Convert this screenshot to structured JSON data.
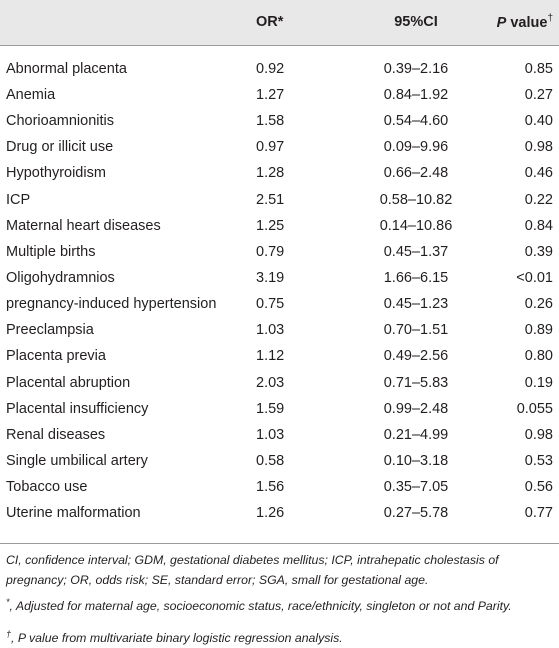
{
  "table": {
    "headers": {
      "col1": "",
      "col2": "OR*",
      "col3": "95%CI",
      "col4_italic": "P",
      "col4_rest": " value",
      "col4_mark": "†"
    },
    "rows": [
      {
        "name": "Abnormal placenta",
        "or": "0.92",
        "ci": "0.39–2.16",
        "p": "0.85"
      },
      {
        "name": "Anemia",
        "or": "1.27",
        "ci": "0.84–1.92",
        "p": "0.27"
      },
      {
        "name": "Chorioamnionitis",
        "or": "1.58",
        "ci": "0.54–4.60",
        "p": "0.40"
      },
      {
        "name": "Drug or illicit use",
        "or": "0.97",
        "ci": "0.09–9.96",
        "p": "0.98"
      },
      {
        "name": "Hypothyroidism",
        "or": "1.28",
        "ci": "0.66–2.48",
        "p": "0.46"
      },
      {
        "name": "ICP",
        "or": "2.51",
        "ci": "0.58–10.82",
        "p": "0.22"
      },
      {
        "name": "Maternal heart diseases",
        "or": "1.25",
        "ci": "0.14–10.86",
        "p": "0.84"
      },
      {
        "name": "Multiple births",
        "or": "0.79",
        "ci": "0.45–1.37",
        "p": "0.39"
      },
      {
        "name": "Oligohydramnios",
        "or": "3.19",
        "ci": "1.66–6.15",
        "p": "<0.01"
      },
      {
        "name": "pregnancy-induced hypertension",
        "or": "0.75",
        "ci": "0.45–1.23",
        "p": "0.26"
      },
      {
        "name": "Preeclampsia",
        "or": "1.03",
        "ci": "0.70–1.51",
        "p": "0.89"
      },
      {
        "name": "Placenta previa",
        "or": "1.12",
        "ci": "0.49–2.56",
        "p": "0.80"
      },
      {
        "name": "Placental abruption",
        "or": "2.03",
        "ci": "0.71–5.83",
        "p": "0.19"
      },
      {
        "name": "Placental insufficiency",
        "or": "1.59",
        "ci": "0.99–2.48",
        "p": "0.055"
      },
      {
        "name": "Renal diseases",
        "or": "1.03",
        "ci": "0.21–4.99",
        "p": "0.98"
      },
      {
        "name": "Single umbilical artery",
        "or": "0.58",
        "ci": "0.10–3.18",
        "p": "0.53"
      },
      {
        "name": "Tobacco use",
        "or": "1.56",
        "ci": "0.35–7.05",
        "p": "0.56"
      },
      {
        "name": "Uterine malformation",
        "or": "1.26",
        "ci": "0.27–5.78",
        "p": "0.77"
      }
    ]
  },
  "footnotes": {
    "abbreviations": "CI, confidence interval; GDM, gestational diabetes mellitus; ICP, intrahepatic cholestasis of pregnancy; OR, odds risk; SE, standard error; SGA, small for gestational age.",
    "star_mark": "*",
    "star_text": ", Adjusted for maternal age, socioeconomic status, race/ethnicity, singleton or not and Parity.",
    "dagger_mark": "†",
    "dagger_text": ", P value from multivariate binary logistic regression analysis."
  },
  "colors": {
    "header_bg": "#e8e8e8",
    "rule": "#9a9a9a",
    "text": "#231f20"
  }
}
